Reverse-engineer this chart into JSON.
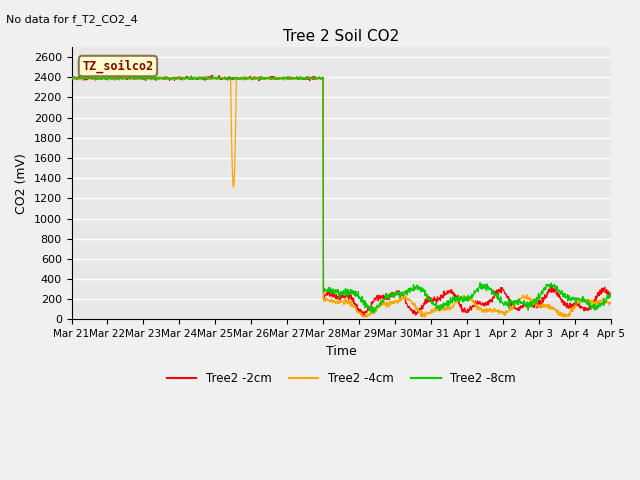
{
  "title": "Tree 2 Soil CO2",
  "subtitle": "No data for f_T2_CO2_4",
  "ylabel": "CO2 (mV)",
  "xlabel": "Time",
  "legend_label": "TZ_soilco2",
  "yticks": [
    0,
    200,
    400,
    600,
    800,
    1000,
    1200,
    1400,
    1600,
    1800,
    2000,
    2200,
    2400,
    2600
  ],
  "ylim": [
    0,
    2700
  ],
  "xtick_labels": [
    "Mar 21",
    "Mar 22",
    "Mar 23",
    "Mar 24",
    "Mar 25",
    "Mar 26",
    "Mar 27",
    "Mar 28",
    "Mar 29",
    "Mar 30",
    "Mar 31",
    "Apr 1",
    "Apr 2",
    "Apr 3",
    "Apr 4",
    "Apr 5"
  ],
  "bg_color": "#e8e8e8",
  "grid_color": "#ffffff",
  "colors": {
    "red": "#ff0000",
    "orange": "#ffa500",
    "green": "#00cc00"
  },
  "flat_value": 2390,
  "transition_day": 7,
  "total_days": 15,
  "orange_dip_day": 4.5,
  "orange_dip_min": 1310,
  "post_green_mean": 220,
  "post_red_mean": 180,
  "post_orange_mean": 130
}
